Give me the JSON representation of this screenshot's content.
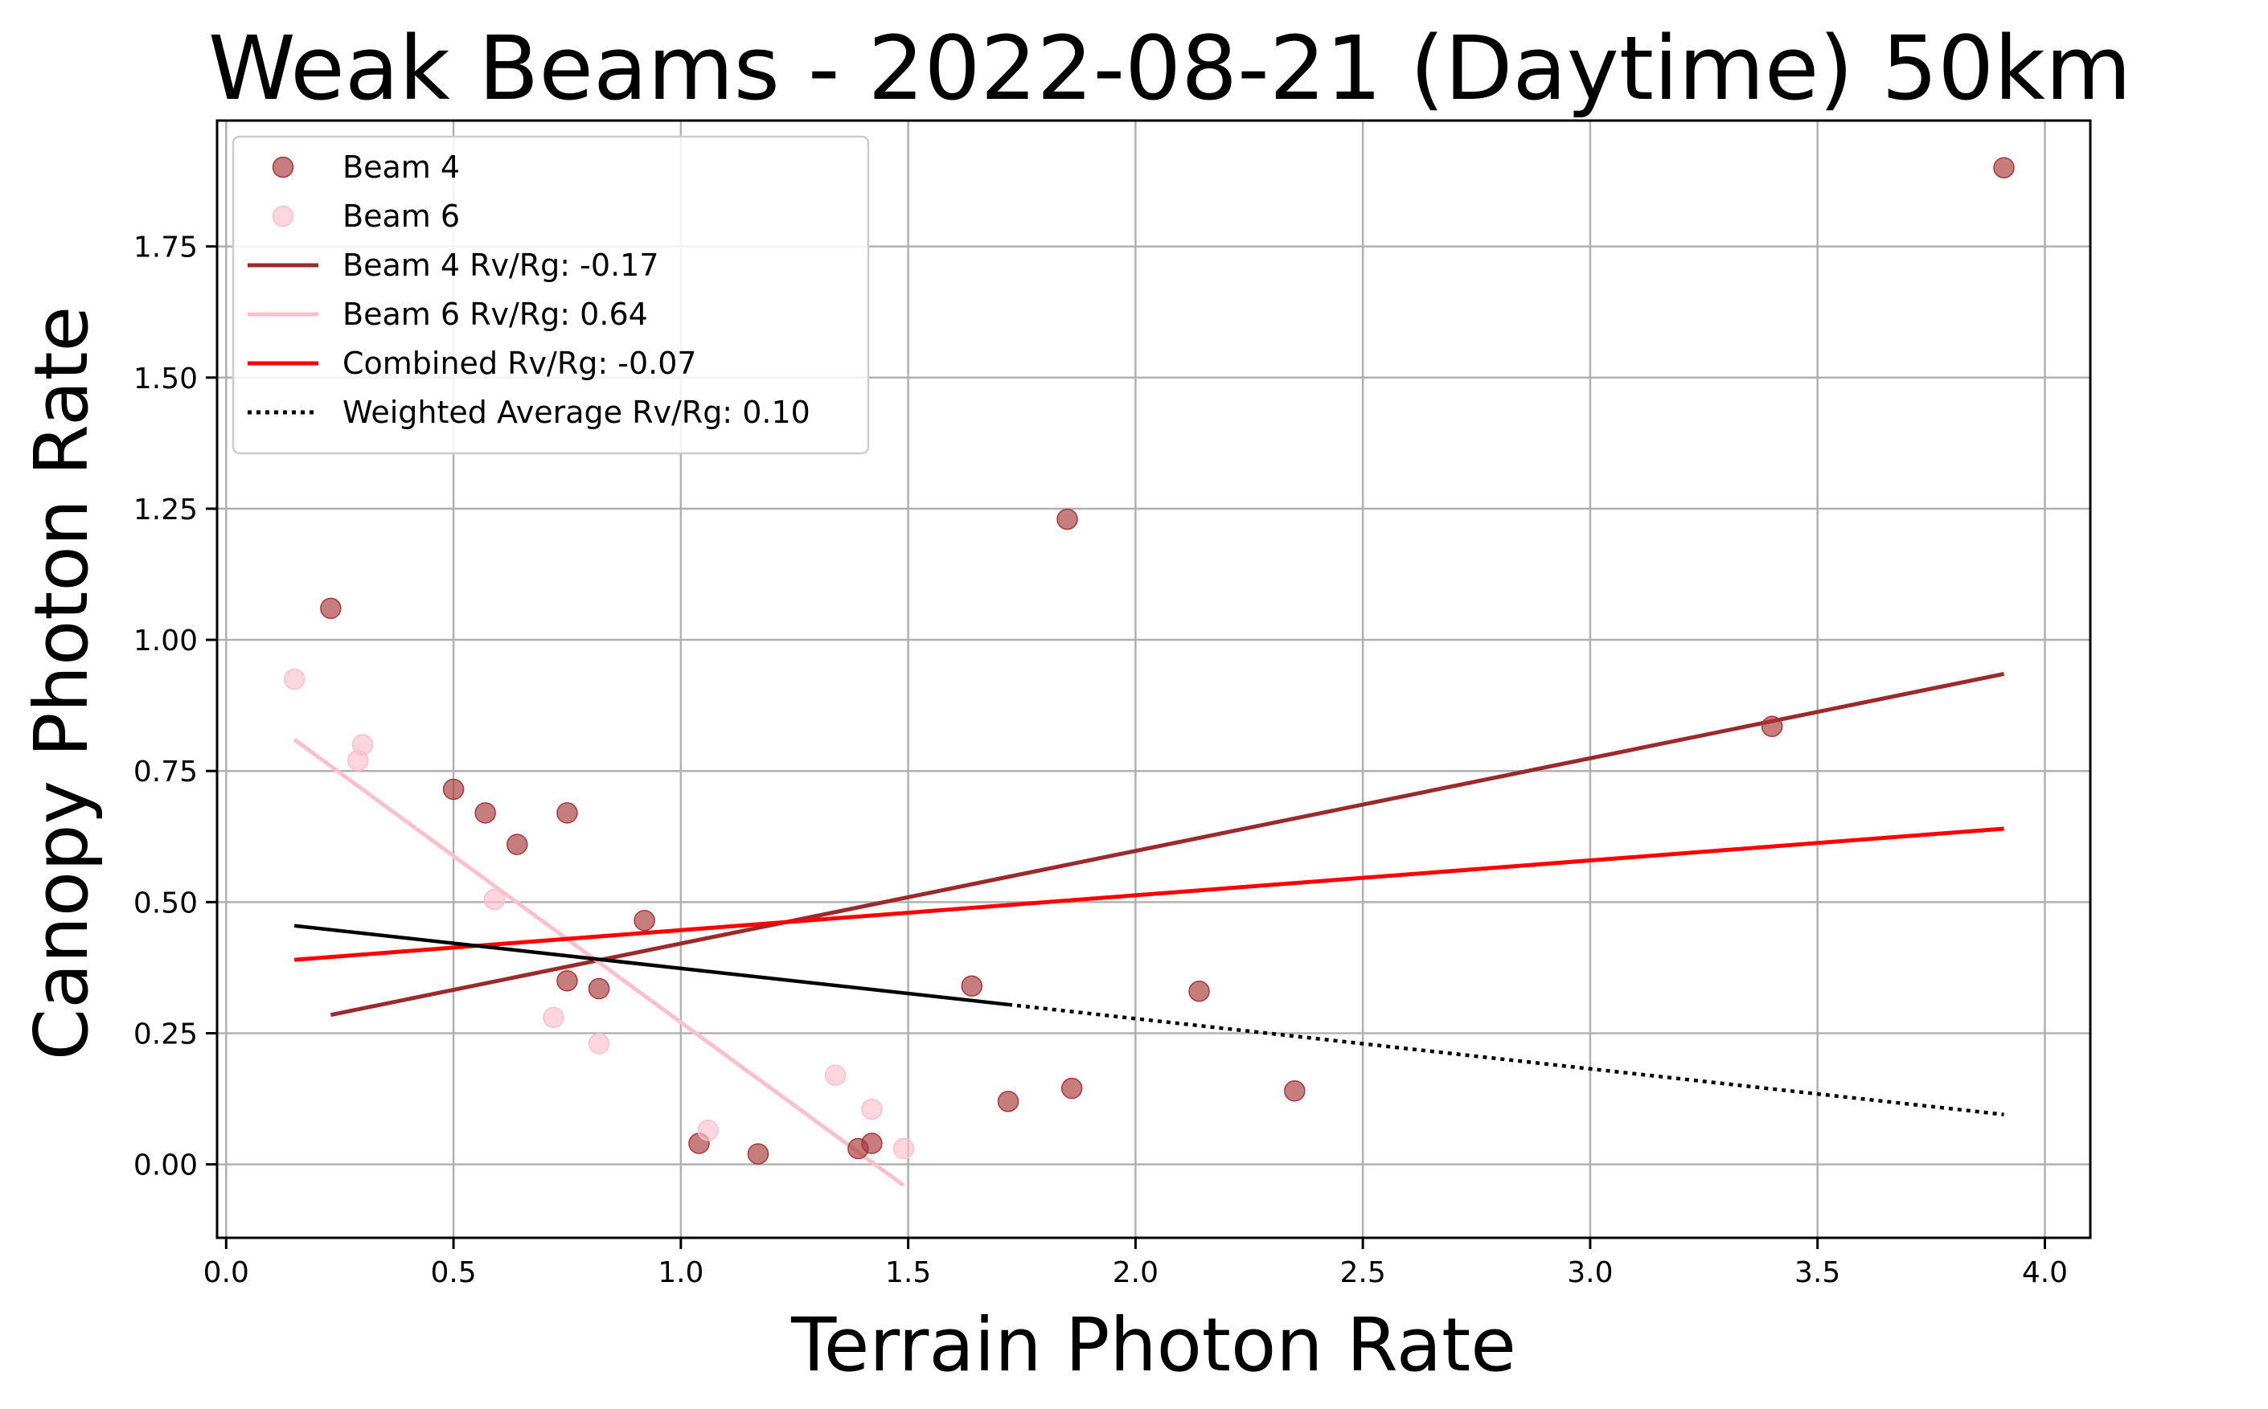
{
  "chart_data": {
    "type": "scatter",
    "title": "Weak Beams - 2022-08-21 (Daytime) 50km",
    "xlabel": "Terrain Photon Rate",
    "ylabel": "Canopy Photon Rate",
    "xlim": [
      -0.02,
      4.1
    ],
    "ylim": [
      -0.14,
      1.99
    ],
    "xticks": [
      "0.0",
      "0.5",
      "1.0",
      "1.5",
      "2.0",
      "2.5",
      "3.0",
      "3.5",
      "4.0"
    ],
    "xtick_values": [
      0.0,
      0.5,
      1.0,
      1.5,
      2.0,
      2.5,
      3.0,
      3.5,
      4.0
    ],
    "yticks": [
      "0.00",
      "0.25",
      "0.50",
      "0.75",
      "1.00",
      "1.25",
      "1.50",
      "1.75"
    ],
    "ytick_values": [
      0.0,
      0.25,
      0.5,
      0.75,
      1.0,
      1.25,
      1.5,
      1.75
    ],
    "grid": true,
    "legend_position": "top-left",
    "scatter_series": [
      {
        "name": "Beam 4",
        "color": "#a83838",
        "opacity": 0.65,
        "points": [
          [
            0.23,
            1.06
          ],
          [
            0.5,
            0.715
          ],
          [
            0.57,
            0.67
          ],
          [
            0.64,
            0.61
          ],
          [
            0.75,
            0.67
          ],
          [
            0.75,
            0.35
          ],
          [
            0.82,
            0.335
          ],
          [
            0.92,
            0.465
          ],
          [
            1.04,
            0.04
          ],
          [
            1.17,
            0.02
          ],
          [
            1.39,
            0.03
          ],
          [
            1.42,
            0.04
          ],
          [
            1.64,
            0.34
          ],
          [
            1.72,
            0.12
          ],
          [
            1.85,
            1.23
          ],
          [
            1.86,
            0.145
          ],
          [
            2.14,
            0.33
          ],
          [
            2.35,
            0.14
          ],
          [
            3.4,
            0.835
          ],
          [
            3.91,
            1.9
          ]
        ]
      },
      {
        "name": "Beam 6",
        "color": "#ffc0cb",
        "opacity": 0.65,
        "points": [
          [
            0.15,
            0.925
          ],
          [
            0.29,
            0.77
          ],
          [
            0.3,
            0.8
          ],
          [
            0.59,
            0.505
          ],
          [
            0.72,
            0.28
          ],
          [
            0.82,
            0.23
          ],
          [
            1.06,
            0.065
          ],
          [
            1.34,
            0.17
          ],
          [
            1.42,
            0.105
          ],
          [
            1.49,
            0.03
          ]
        ]
      }
    ],
    "line_series": [
      {
        "name": "Beam 4 Rv/Rg: -0.17",
        "color": "#9b2a2a",
        "style": "solid",
        "x": [
          0.23,
          3.91
        ],
        "y": [
          0.285,
          0.935
        ]
      },
      {
        "name": "Beam 6 Rv/Rg: 0.64",
        "color": "#ffc0cb",
        "style": "solid",
        "x": [
          0.15,
          1.49
        ],
        "y": [
          0.81,
          -0.04
        ]
      },
      {
        "name": "Combined Rv/Rg: -0.07",
        "color": "#ff0000",
        "style": "solid",
        "x": [
          0.15,
          3.91
        ],
        "y": [
          0.39,
          0.64
        ]
      },
      {
        "name": "Weighted Average Rv/Rg: 0.10",
        "color": "#000000",
        "style": "dotted",
        "x": [
          0.15,
          3.91
        ],
        "y": [
          0.455,
          0.095
        ],
        "solid_until_x": 1.72
      }
    ],
    "legend_entries": [
      {
        "label": "Beam 4",
        "kind": "marker",
        "color": "#a83838"
      },
      {
        "label": "Beam 6",
        "kind": "marker",
        "color": "#ffc0cb"
      },
      {
        "label": "Beam 4 Rv/Rg: -0.17",
        "kind": "line",
        "color": "#9b2a2a",
        "style": "solid"
      },
      {
        "label": "Beam 6 Rv/Rg: 0.64",
        "kind": "line",
        "color": "#ffc0cb",
        "style": "solid"
      },
      {
        "label": "Combined Rv/Rg: -0.07",
        "kind": "line",
        "color": "#ff0000",
        "style": "solid"
      },
      {
        "label": "Weighted Average Rv/Rg: 0.10",
        "kind": "line",
        "color": "#000000",
        "style": "dotted"
      }
    ]
  }
}
